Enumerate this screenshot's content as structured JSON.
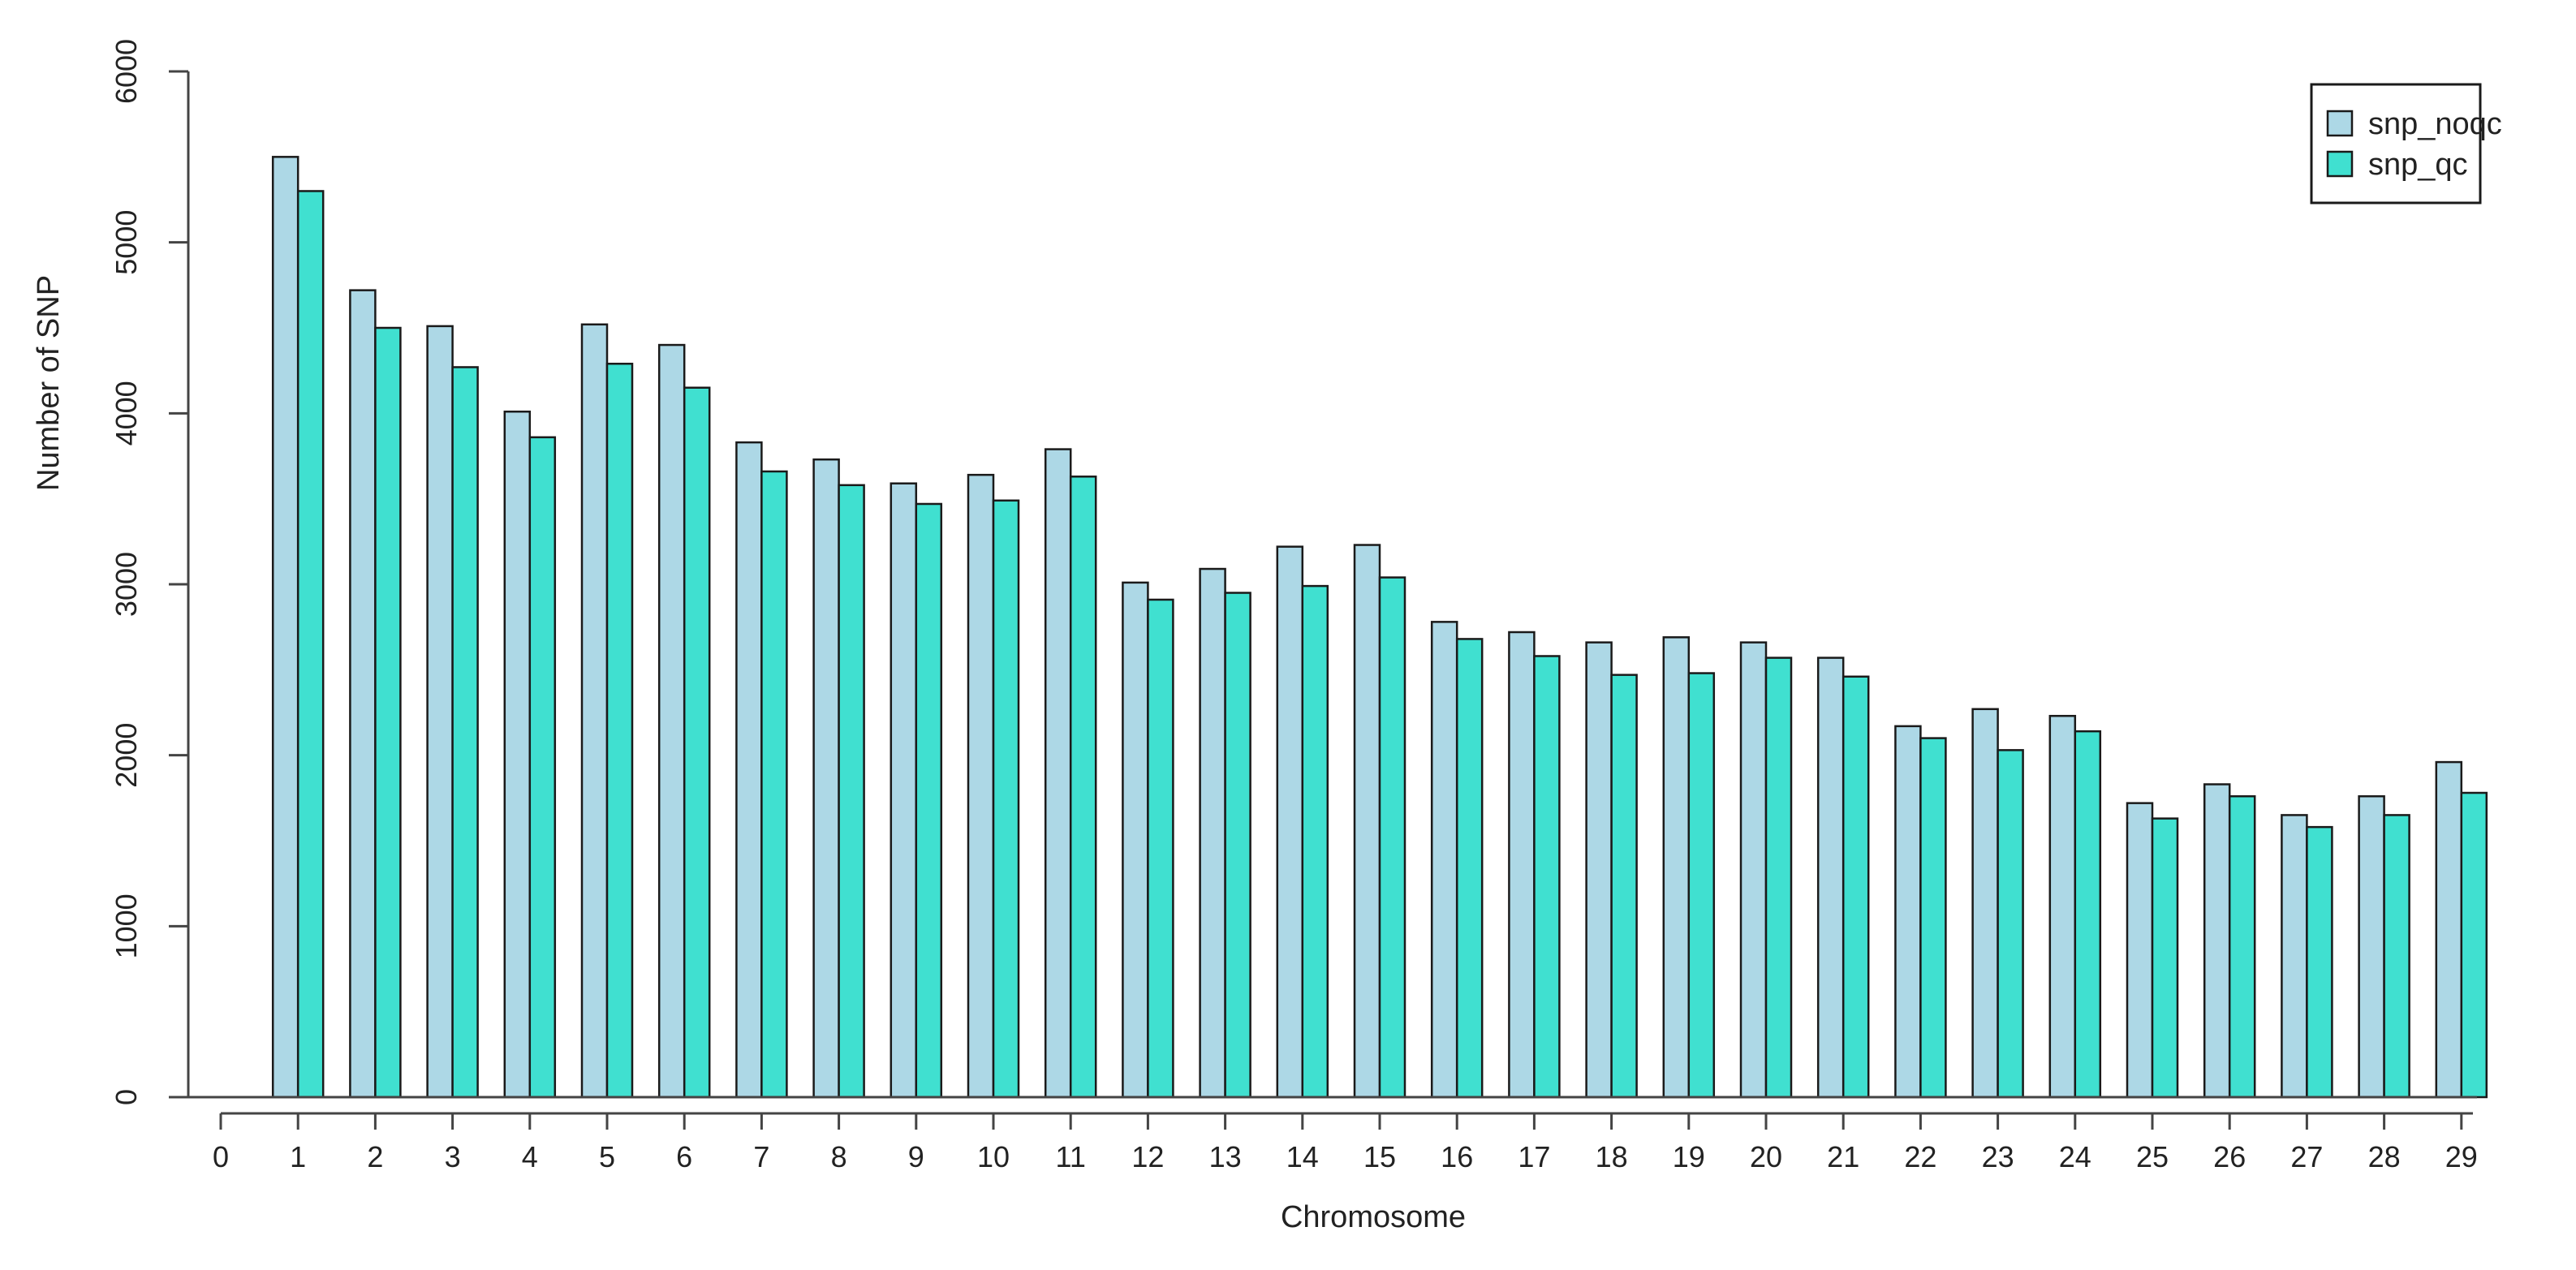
{
  "chart_data": {
    "type": "bar",
    "xlabel": "Chromosome",
    "ylabel": "Number of SNP",
    "ylim": [
      0,
      6000
    ],
    "yticks": [
      0,
      1000,
      2000,
      3000,
      4000,
      5000,
      6000
    ],
    "xticks": [
      "0",
      "1",
      "2",
      "3",
      "4",
      "5",
      "6",
      "7",
      "8",
      "9",
      "10",
      "11",
      "12",
      "13",
      "14",
      "15",
      "16",
      "17",
      "18",
      "19",
      "20",
      "21",
      "22",
      "23",
      "24",
      "25",
      "26",
      "27",
      "28",
      "29"
    ],
    "categories": [
      "1",
      "2",
      "3",
      "4",
      "5",
      "6",
      "7",
      "8",
      "9",
      "10",
      "11",
      "12",
      "13",
      "14",
      "15",
      "16",
      "17",
      "18",
      "19",
      "20",
      "21",
      "22",
      "23",
      "24",
      "25",
      "26",
      "27",
      "28",
      "29"
    ],
    "series": [
      {
        "name": "snp_noqc",
        "color": "#add8e6",
        "values": [
          5500,
          4720,
          4510,
          4010,
          4520,
          4400,
          3830,
          3730,
          3590,
          3640,
          3790,
          3010,
          3090,
          3220,
          3230,
          2780,
          2720,
          2660,
          2690,
          2660,
          2570,
          2170,
          2270,
          2230,
          1720,
          1830,
          1650,
          1760,
          1960
        ]
      },
      {
        "name": "snp_qc",
        "color": "#40e0d0",
        "values": [
          5300,
          4500,
          4270,
          3860,
          4290,
          4150,
          3660,
          3580,
          3470,
          3490,
          3630,
          2910,
          2950,
          2990,
          3040,
          2680,
          2580,
          2470,
          2480,
          2570,
          2460,
          2100,
          2030,
          2140,
          1630,
          1760,
          1580,
          1650,
          1780
        ]
      }
    ],
    "legend_position": "top-right",
    "grid": false
  }
}
